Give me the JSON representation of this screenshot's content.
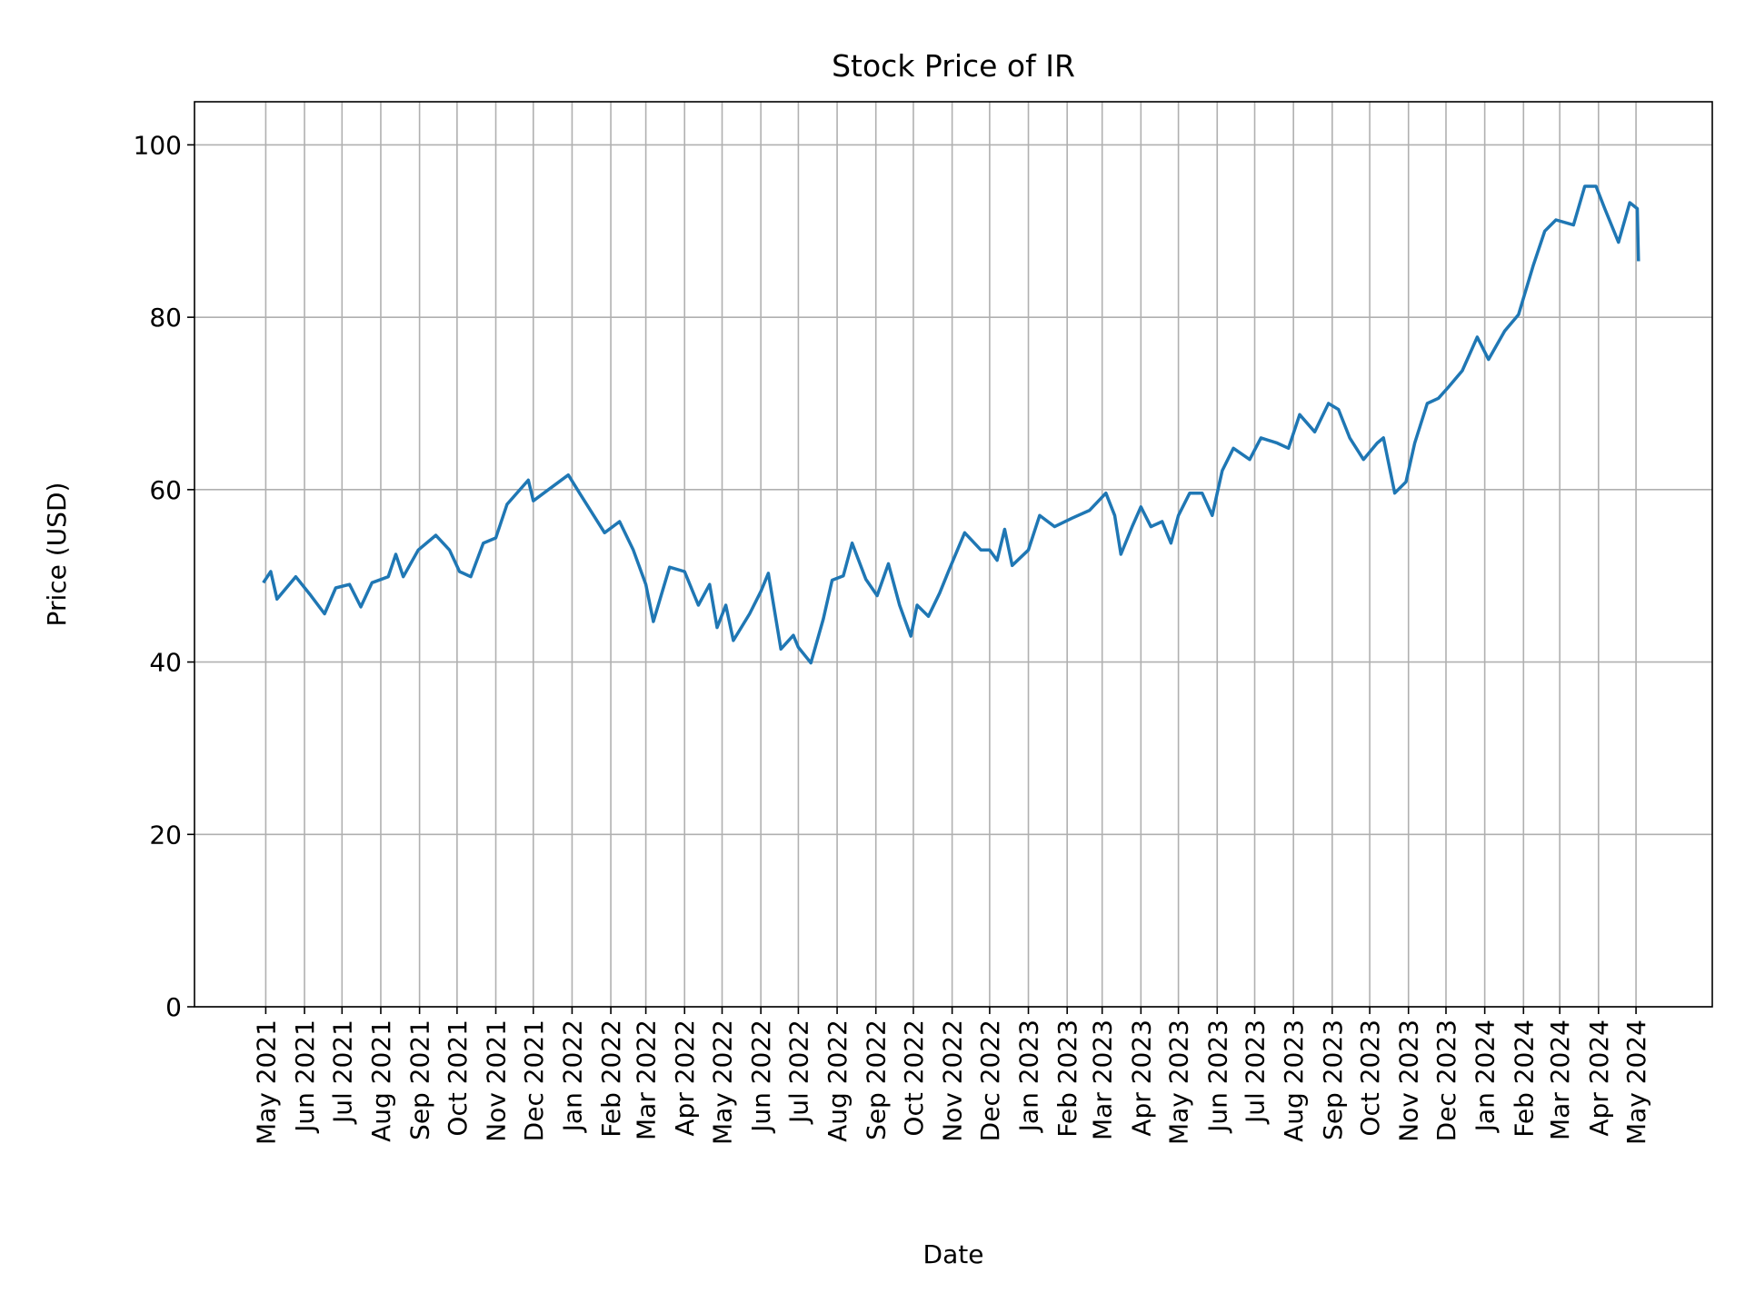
{
  "chart_data": {
    "type": "line",
    "title": "Stock Price of IR",
    "xlabel": "Date",
    "ylabel": "Price (USD)",
    "ylim": [
      0,
      105
    ],
    "xlim": [
      "2021-03-05",
      "2024-07-01"
    ],
    "grid": true,
    "line_color": "#1f77b4",
    "yticks": [
      0,
      20,
      40,
      60,
      80,
      100
    ],
    "xticks": [
      {
        "date": "2021-05-01",
        "label": "May 2021"
      },
      {
        "date": "2021-06-01",
        "label": "Jun 2021"
      },
      {
        "date": "2021-07-01",
        "label": "Jul 2021"
      },
      {
        "date": "2021-08-01",
        "label": "Aug 2021"
      },
      {
        "date": "2021-09-01",
        "label": "Sep 2021"
      },
      {
        "date": "2021-10-01",
        "label": "Oct 2021"
      },
      {
        "date": "2021-11-01",
        "label": "Nov 2021"
      },
      {
        "date": "2021-12-01",
        "label": "Dec 2021"
      },
      {
        "date": "2022-01-01",
        "label": "Jan 2022"
      },
      {
        "date": "2022-02-01",
        "label": "Feb 2022"
      },
      {
        "date": "2022-03-01",
        "label": "Mar 2022"
      },
      {
        "date": "2022-04-01",
        "label": "Apr 2022"
      },
      {
        "date": "2022-05-01",
        "label": "May 2022"
      },
      {
        "date": "2022-06-01",
        "label": "Jun 2022"
      },
      {
        "date": "2022-07-01",
        "label": "Jul 2022"
      },
      {
        "date": "2022-08-01",
        "label": "Aug 2022"
      },
      {
        "date": "2022-09-01",
        "label": "Sep 2022"
      },
      {
        "date": "2022-10-01",
        "label": "Oct 2022"
      },
      {
        "date": "2022-11-01",
        "label": "Nov 2022"
      },
      {
        "date": "2022-12-01",
        "label": "Dec 2022"
      },
      {
        "date": "2023-01-01",
        "label": "Jan 2023"
      },
      {
        "date": "2023-02-01",
        "label": "Feb 2023"
      },
      {
        "date": "2023-03-01",
        "label": "Mar 2023"
      },
      {
        "date": "2023-04-01",
        "label": "Apr 2023"
      },
      {
        "date": "2023-05-01",
        "label": "May 2023"
      },
      {
        "date": "2023-06-01",
        "label": "Jun 2023"
      },
      {
        "date": "2023-07-01",
        "label": "Jul 2023"
      },
      {
        "date": "2023-08-01",
        "label": "Aug 2023"
      },
      {
        "date": "2023-09-01",
        "label": "Sep 2023"
      },
      {
        "date": "2023-10-01",
        "label": "Oct 2023"
      },
      {
        "date": "2023-11-01",
        "label": "Nov 2023"
      },
      {
        "date": "2023-12-01",
        "label": "Dec 2023"
      },
      {
        "date": "2024-01-01",
        "label": "Jan 2024"
      },
      {
        "date": "2024-02-01",
        "label": "Feb 2024"
      },
      {
        "date": "2024-03-01",
        "label": "Mar 2024"
      },
      {
        "date": "2024-04-01",
        "label": "Apr 2024"
      },
      {
        "date": "2024-05-01",
        "label": "May 2024"
      }
    ],
    "series": [
      {
        "x": [
          "2021-04-29",
          "2021-05-05",
          "2021-05-10",
          "2021-05-25",
          "2021-06-05",
          "2021-06-17",
          "2021-06-26",
          "2021-07-07",
          "2021-07-16",
          "2021-07-25",
          "2021-08-07",
          "2021-08-13",
          "2021-08-19",
          "2021-08-31",
          "2021-09-14",
          "2021-09-25",
          "2021-10-03",
          "2021-10-12",
          "2021-10-22",
          "2021-11-01",
          "2021-11-10",
          "2021-11-27",
          "2021-12-01",
          "2021-12-29",
          "2022-01-07",
          "2022-01-27",
          "2022-02-08",
          "2022-02-19",
          "2022-03-01",
          "2022-03-07",
          "2022-03-20",
          "2022-04-01",
          "2022-04-12",
          "2022-04-21",
          "2022-04-27",
          "2022-05-04",
          "2022-05-10",
          "2022-05-23",
          "2022-06-01",
          "2022-06-07",
          "2022-06-17",
          "2022-06-27",
          "2022-07-01",
          "2022-07-11",
          "2022-07-21",
          "2022-07-28",
          "2022-08-06",
          "2022-08-13",
          "2022-08-24",
          "2022-09-02",
          "2022-09-11",
          "2022-09-20",
          "2022-09-29",
          "2022-10-04",
          "2022-10-13",
          "2022-10-22",
          "2022-10-29",
          "2022-11-11",
          "2022-11-24",
          "2022-12-01",
          "2022-12-07",
          "2022-12-13",
          "2022-12-19",
          "2023-01-01",
          "2023-01-10",
          "2023-01-22",
          "2023-02-05",
          "2023-02-19",
          "2023-03-04",
          "2023-03-11",
          "2023-03-16",
          "2023-03-25",
          "2023-04-01",
          "2023-04-09",
          "2023-04-18",
          "2023-04-25",
          "2023-05-01",
          "2023-05-10",
          "2023-05-20",
          "2023-05-28",
          "2023-06-05",
          "2023-06-14",
          "2023-06-27",
          "2023-07-06",
          "2023-07-19",
          "2023-07-28",
          "2023-08-06",
          "2023-08-18",
          "2023-08-29",
          "2023-09-06",
          "2023-09-15",
          "2023-09-26",
          "2023-10-07",
          "2023-10-12",
          "2023-10-21",
          "2023-10-30",
          "2023-11-06",
          "2023-11-16",
          "2023-11-25",
          "2023-12-03",
          "2023-12-14",
          "2023-12-26",
          "2024-01-04",
          "2024-01-17",
          "2024-01-28",
          "2024-02-09",
          "2024-02-18",
          "2024-02-27",
          "2024-03-12",
          "2024-03-21",
          "2024-03-30",
          "2024-04-06",
          "2024-04-17",
          "2024-04-26",
          "2024-05-02",
          "2024-05-03"
        ],
        "y": [
          49.2,
          50.5,
          47.3,
          49.9,
          47.9,
          45.6,
          48.6,
          49.0,
          46.4,
          49.2,
          49.9,
          52.5,
          49.9,
          53.0,
          54.7,
          53.0,
          50.5,
          49.9,
          53.8,
          54.4,
          58.3,
          61.1,
          58.7,
          61.7,
          59.6,
          55.0,
          56.3,
          53.0,
          49.0,
          44.7,
          51.0,
          50.5,
          46.6,
          49.0,
          44.0,
          46.6,
          42.5,
          45.6,
          48.2,
          50.3,
          41.5,
          43.1,
          41.7,
          39.9,
          45.0,
          49.5,
          50.0,
          53.8,
          49.6,
          47.7,
          51.4,
          46.6,
          43.0,
          46.6,
          45.3,
          48.0,
          50.5,
          55.0,
          53.0,
          53.0,
          51.8,
          55.4,
          51.2,
          53.0,
          57.0,
          55.7,
          56.7,
          57.6,
          59.6,
          57.0,
          52.5,
          55.7,
          58.0,
          55.7,
          56.3,
          53.8,
          57.0,
          59.6,
          59.6,
          57.0,
          62.2,
          64.8,
          63.5,
          66.0,
          65.4,
          64.8,
          68.7,
          66.7,
          70.0,
          69.3,
          66.0,
          63.5,
          65.4,
          66.0,
          59.6,
          60.9,
          65.4,
          70.0,
          70.6,
          71.9,
          73.8,
          77.7,
          75.1,
          78.4,
          80.3,
          86.1,
          90.0,
          91.3,
          90.7,
          95.2,
          95.2,
          92.6,
          88.7,
          93.3,
          92.6,
          86.5
        ]
      }
    ]
  }
}
